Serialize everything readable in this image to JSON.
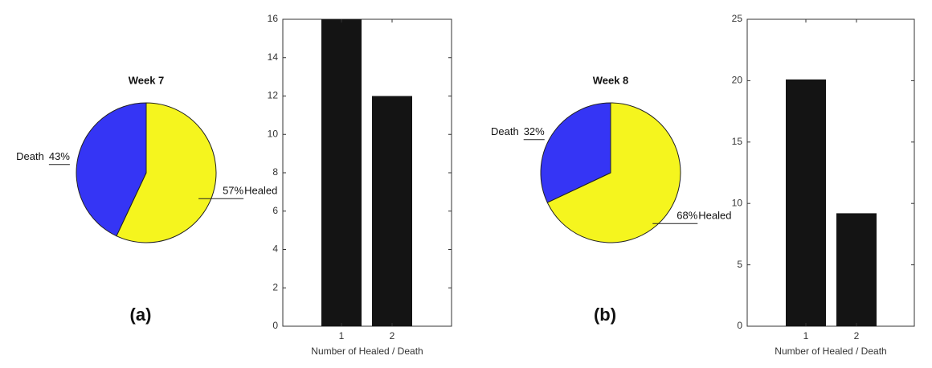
{
  "chart_data": [
    {
      "type": "pie",
      "title": "Week 7",
      "caption": "(a)",
      "categories": [
        "Death",
        "Healed"
      ],
      "values": [
        43,
        57
      ],
      "value_labels": [
        "43%",
        "57%"
      ],
      "colors": [
        "#3535f5",
        "#f5f51e"
      ]
    },
    {
      "type": "bar",
      "categories": [
        "1",
        "2"
      ],
      "values": [
        16,
        12
      ],
      "color": "#141414",
      "xlabel": "Number of Healed / Death",
      "ylim": [
        0,
        16
      ],
      "yticks": [
        0,
        2,
        4,
        6,
        8,
        10,
        12,
        14,
        16
      ]
    },
    {
      "type": "pie",
      "title": "Week 8",
      "caption": "(b)",
      "categories": [
        "Death",
        "Healed"
      ],
      "values": [
        32,
        68
      ],
      "value_labels": [
        "32%",
        "68%"
      ],
      "colors": [
        "#3535f5",
        "#f5f51e"
      ]
    },
    {
      "type": "bar",
      "categories": [
        "1",
        "2"
      ],
      "values": [
        20.1,
        9.2
      ],
      "color": "#141414",
      "xlabel": "Number of Healed / Death",
      "ylim": [
        0,
        25
      ],
      "yticks": [
        0,
        5,
        10,
        15,
        20,
        25
      ]
    }
  ]
}
